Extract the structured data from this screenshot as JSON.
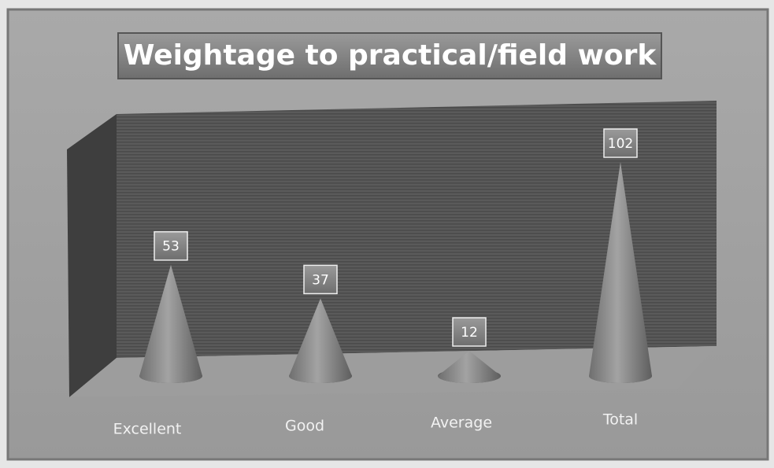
{
  "chart_data": {
    "type": "cone",
    "title": "Weightage to practical/field work",
    "categories": [
      "Excellent",
      "Good",
      "Average",
      "Total"
    ],
    "values": [
      53,
      37,
      12,
      102
    ],
    "color": "#8a8a8a"
  }
}
